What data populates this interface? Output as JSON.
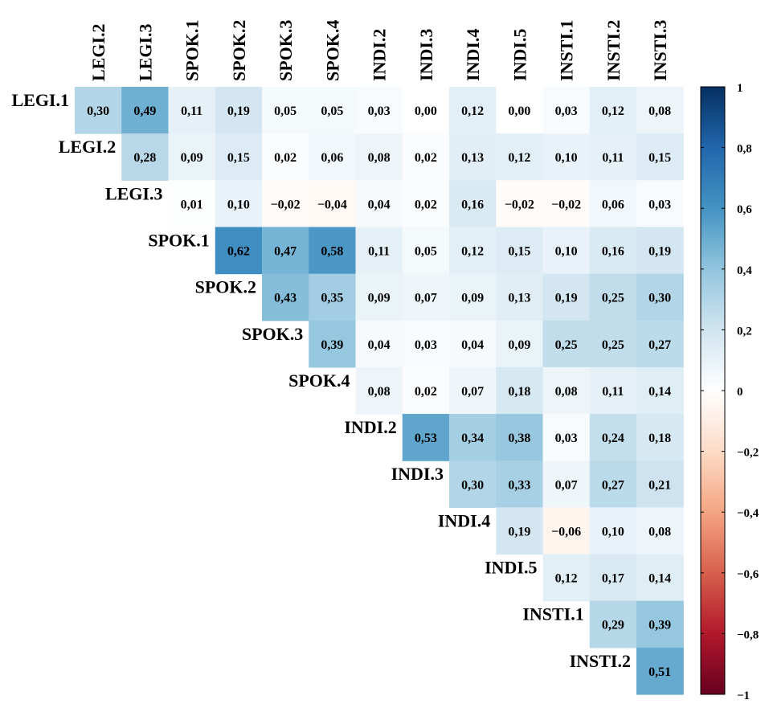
{
  "chart_data": {
    "type": "heatmap",
    "title": "",
    "xlabel": "",
    "ylabel": "",
    "columns": [
      "LEGI.2",
      "LEGI.3",
      "SPOK.1",
      "SPOK.2",
      "SPOK.3",
      "SPOK.4",
      "INDI.2",
      "INDI.3",
      "INDI.4",
      "INDI.5",
      "INSTI.1",
      "INSTI.2",
      "INSTI.3"
    ],
    "rows": [
      "LEGI.1",
      "LEGI.2",
      "LEGI.3",
      "SPOK.1",
      "SPOK.2",
      "SPOK.3",
      "SPOK.4",
      "INDI.2",
      "INDI.3",
      "INDI.4",
      "INDI.5",
      "INSTI.1",
      "INSTI.2"
    ],
    "values": [
      [
        0.3,
        0.49,
        0.11,
        0.19,
        0.05,
        0.05,
        0.03,
        0.0,
        0.12,
        0.0,
        0.03,
        0.12,
        0.08
      ],
      [
        null,
        0.28,
        0.09,
        0.15,
        0.02,
        0.06,
        0.08,
        0.02,
        0.13,
        0.12,
        0.1,
        0.11,
        0.15
      ],
      [
        null,
        null,
        0.01,
        0.1,
        -0.02,
        -0.04,
        0.04,
        0.02,
        0.16,
        -0.02,
        -0.02,
        0.06,
        0.03
      ],
      [
        null,
        null,
        null,
        0.62,
        0.47,
        0.58,
        0.11,
        0.05,
        0.12,
        0.15,
        0.1,
        0.16,
        0.19
      ],
      [
        null,
        null,
        null,
        null,
        0.43,
        0.35,
        0.09,
        0.07,
        0.09,
        0.13,
        0.19,
        0.25,
        0.3
      ],
      [
        null,
        null,
        null,
        null,
        null,
        0.39,
        0.04,
        0.03,
        0.04,
        0.09,
        0.25,
        0.25,
        0.27
      ],
      [
        null,
        null,
        null,
        null,
        null,
        null,
        0.08,
        0.02,
        0.07,
        0.18,
        0.08,
        0.11,
        0.14
      ],
      [
        null,
        null,
        null,
        null,
        null,
        null,
        null,
        0.53,
        0.34,
        0.38,
        0.03,
        0.24,
        0.18
      ],
      [
        null,
        null,
        null,
        null,
        null,
        null,
        null,
        null,
        0.3,
        0.33,
        0.07,
        0.27,
        0.21
      ],
      [
        null,
        null,
        null,
        null,
        null,
        null,
        null,
        null,
        null,
        0.19,
        -0.06,
        0.1,
        0.08
      ],
      [
        null,
        null,
        null,
        null,
        null,
        null,
        null,
        null,
        null,
        null,
        0.12,
        0.17,
        0.14
      ],
      [
        null,
        null,
        null,
        null,
        null,
        null,
        null,
        null,
        null,
        null,
        null,
        0.29,
        0.39
      ],
      [
        null,
        null,
        null,
        null,
        null,
        null,
        null,
        null,
        null,
        null,
        null,
        null,
        0.51
      ]
    ],
    "value_labels": [
      [
        "0,30",
        "0,49",
        "0,11",
        "0,19",
        "0,05",
        "0,05",
        "0,03",
        "0,00",
        "0,12",
        "0,00",
        "0,03",
        "0,12",
        "0,08"
      ],
      [
        null,
        "0,28",
        "0,09",
        "0,15",
        "0,02",
        "0,06",
        "0,08",
        "0,02",
        "0,13",
        "0,12",
        "0,10",
        "0,11",
        "0,15"
      ],
      [
        null,
        null,
        "0,01",
        "0,10",
        "−0,02",
        "−0,04",
        "0,04",
        "0,02",
        "0,16",
        "−0,02",
        "−0,02",
        "0,06",
        "0,03"
      ],
      [
        null,
        null,
        null,
        "0,62",
        "0,47",
        "0,58",
        "0,11",
        "0,05",
        "0,12",
        "0,15",
        "0,10",
        "0,16",
        "0,19"
      ],
      [
        null,
        null,
        null,
        null,
        "0,43",
        "0,35",
        "0,09",
        "0,07",
        "0,09",
        "0,13",
        "0,19",
        "0,25",
        "0,30"
      ],
      [
        null,
        null,
        null,
        null,
        null,
        "0,39",
        "0,04",
        "0,03",
        "0,04",
        "0,09",
        "0,25",
        "0,25",
        "0,27"
      ],
      [
        null,
        null,
        null,
        null,
        null,
        null,
        "0,08",
        "0,02",
        "0,07",
        "0,18",
        "0,08",
        "0,11",
        "0,14"
      ],
      [
        null,
        null,
        null,
        null,
        null,
        null,
        null,
        "0,53",
        "0,34",
        "0,38",
        "0,03",
        "0,24",
        "0,18"
      ],
      [
        null,
        null,
        null,
        null,
        null,
        null,
        null,
        null,
        "0,30",
        "0,33",
        "0,07",
        "0,27",
        "0,21"
      ],
      [
        null,
        null,
        null,
        null,
        null,
        null,
        null,
        null,
        null,
        "0,19",
        "−0,06",
        "0,10",
        "0,08"
      ],
      [
        null,
        null,
        null,
        null,
        null,
        null,
        null,
        null,
        null,
        null,
        "0,12",
        "0,17",
        "0,14"
      ],
      [
        null,
        null,
        null,
        null,
        null,
        null,
        null,
        null,
        null,
        null,
        null,
        "0,29",
        "0,39"
      ],
      [
        null,
        null,
        null,
        null,
        null,
        null,
        null,
        null,
        null,
        null,
        null,
        null,
        "0,51"
      ]
    ],
    "colorbar": {
      "range": [
        -1,
        1
      ],
      "ticks": [
        1,
        0.8,
        0.6,
        0.4,
        0.2,
        0,
        -0.2,
        -0.4,
        -0.6,
        -0.8,
        -1
      ],
      "tick_labels": [
        "1",
        "0,8",
        "0,6",
        "0,4",
        "0,2",
        "0",
        "−0,2",
        "−0,4",
        "−0,6",
        "−0,8",
        "−1"
      ],
      "palette": [
        "#67001F",
        "#B2182B",
        "#D6604D",
        "#F4A582",
        "#FDDBC7",
        "#FFFFFF",
        "#D1E5F0",
        "#92C5DE",
        "#4393C3",
        "#2166AC",
        "#053061"
      ]
    },
    "grid": false,
    "legend": "right"
  }
}
